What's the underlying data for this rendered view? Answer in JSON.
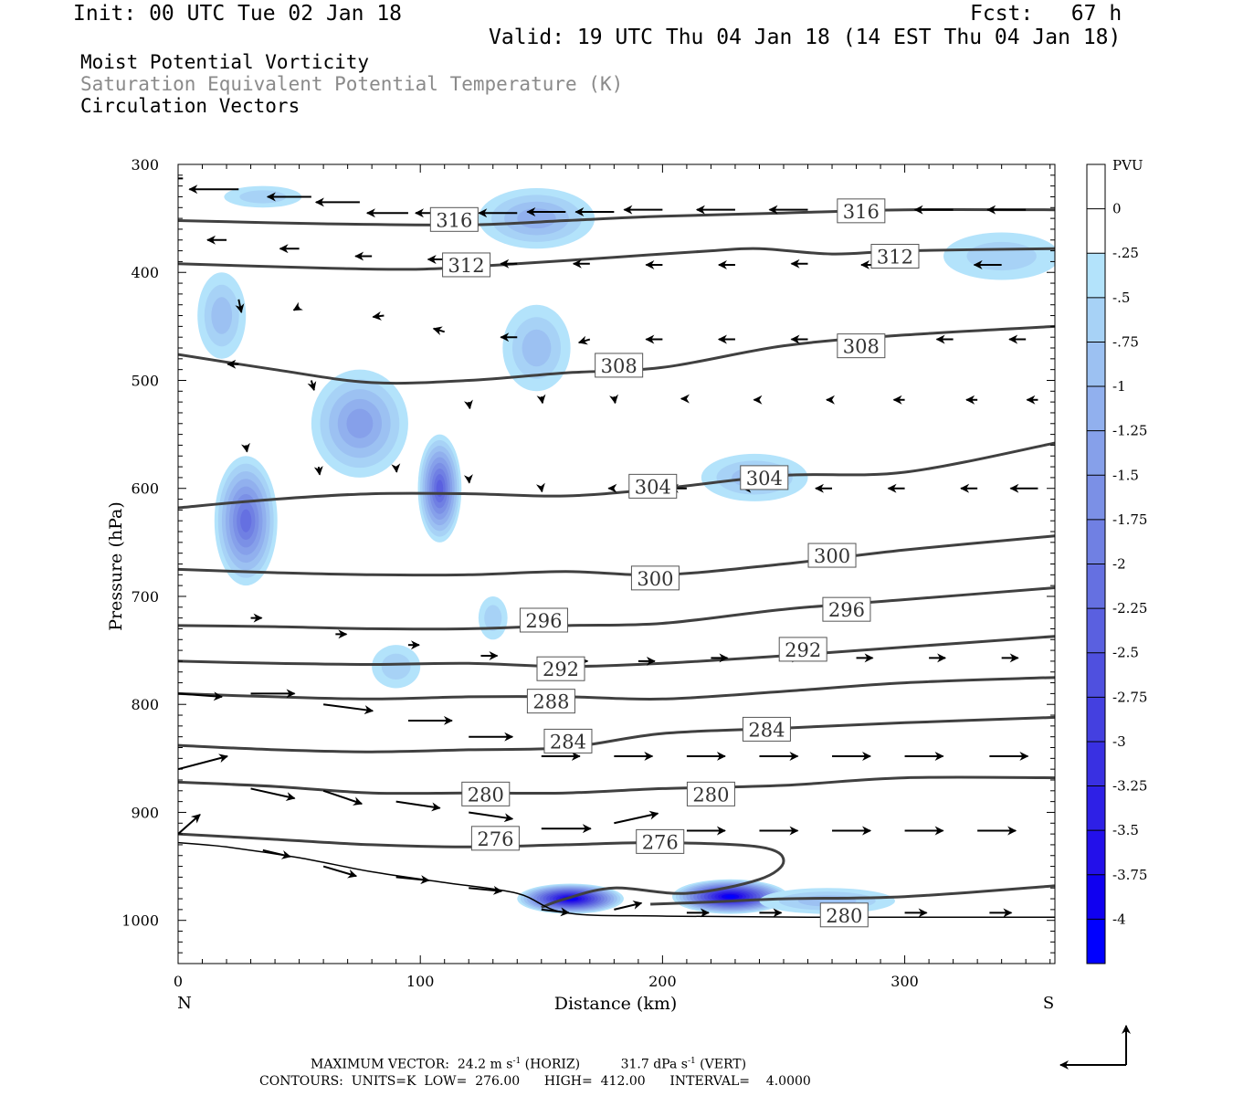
{
  "header": {
    "init": "Init: 00 UTC Tue 02 Jan 18",
    "fcst": "Fcst:   67 h",
    "valid": "Valid: 19 UTC Thu 04 Jan 18 (14 EST Thu 04 Jan 18)",
    "line1": "Moist Potential Vorticity",
    "line2": "Saturation Equivalent Potential Temperature (K)",
    "line3": "Circulation Vectors"
  },
  "footer": {
    "max_label": "MAXIMUM VECTOR:",
    "horiz_value": "24.2 m s",
    "horiz_exp": "-1",
    "horiz_tag": " (HORIZ)",
    "vert_value": "31.7 dPa s",
    "vert_exp": "-1",
    "vert_tag": " (VERT)",
    "contours": "CONTOURS:  UNITS=K  LOW=  276.00      HIGH=  412.00      INTERVAL=    4.0000"
  },
  "colors": {
    "contour": "#404040",
    "terrain": "#000000",
    "mpv_ramp": [
      "#b3e3fb",
      "#a7d2f6",
      "#9cc1f2",
      "#91b0ee",
      "#86a0ea",
      "#7b90e6",
      "#7080e3",
      "#6570e1",
      "#5a60e0",
      "#4f50df",
      "#4440e0",
      "#3930e2",
      "#2e20e6",
      "#2310ea",
      "#1000f0",
      "#0000ff"
    ]
  },
  "chart_data": {
    "type": "cross-section",
    "xlabel": "Distance (km)",
    "ylabel": "Pressure (hPa)",
    "xlim": [
      0,
      362
    ],
    "ylim": [
      1040,
      300
    ],
    "x_ticks": [
      "0",
      "100",
      "200",
      "300"
    ],
    "y_ticks": [
      "300",
      "400",
      "500",
      "600",
      "700",
      "800",
      "900",
      "1000"
    ],
    "x_end_labels": {
      "left": "N",
      "right": "S"
    },
    "colorbar": {
      "title": "PVU",
      "labels": [
        "0",
        "-.25",
        "-.5",
        "-.75",
        "-1",
        "-1.25",
        "-1.5",
        "-1.75",
        "-2",
        "-2.25",
        "-2.5",
        "-2.75",
        "-3",
        "-3.25",
        "-3.5",
        "-3.75",
        "-4"
      ]
    },
    "contours": [
      {
        "value": 316,
        "points": [
          [
            0,
            352
          ],
          [
            60,
            355
          ],
          [
            120,
            356
          ],
          [
            160,
            352
          ],
          [
            200,
            348
          ],
          [
            250,
            345
          ],
          [
            300,
            342
          ],
          [
            362,
            342
          ]
        ],
        "labels": [
          [
            114,
            351
          ],
          [
            282,
            343
          ]
        ]
      },
      {
        "value": 312,
        "points": [
          [
            0,
            392
          ],
          [
            60,
            396
          ],
          [
            100,
            397
          ],
          [
            140,
            392
          ],
          [
            180,
            386
          ],
          [
            220,
            380
          ],
          [
            240,
            378
          ],
          [
            270,
            383
          ],
          [
            300,
            380
          ],
          [
            362,
            378
          ]
        ],
        "labels": [
          [
            119,
            393
          ],
          [
            296,
            385
          ]
        ]
      },
      {
        "value": 308,
        "points": [
          [
            0,
            476
          ],
          [
            40,
            490
          ],
          [
            80,
            502
          ],
          [
            120,
            500
          ],
          [
            160,
            493
          ],
          [
            200,
            488
          ],
          [
            250,
            468
          ],
          [
            300,
            458
          ],
          [
            362,
            450
          ]
        ],
        "labels": [
          [
            182,
            486
          ],
          [
            282,
            468
          ]
        ]
      },
      {
        "value": 304,
        "points": [
          [
            0,
            618
          ],
          [
            40,
            610
          ],
          [
            80,
            605
          ],
          [
            120,
            605
          ],
          [
            160,
            607
          ],
          [
            200,
            600
          ],
          [
            250,
            588
          ],
          [
            300,
            585
          ],
          [
            362,
            558
          ]
        ],
        "labels": [
          [
            196,
            598
          ],
          [
            242,
            590
          ]
        ]
      },
      {
        "value": 300,
        "points": [
          [
            0,
            675
          ],
          [
            40,
            678
          ],
          [
            80,
            680
          ],
          [
            120,
            680
          ],
          [
            160,
            677
          ],
          [
            200,
            680
          ],
          [
            250,
            670
          ],
          [
            300,
            657
          ],
          [
            362,
            644
          ]
        ],
        "labels": [
          [
            197,
            683
          ],
          [
            270,
            662
          ]
        ]
      },
      {
        "value": 296,
        "points": [
          [
            0,
            727
          ],
          [
            40,
            728
          ],
          [
            80,
            730
          ],
          [
            120,
            730
          ],
          [
            160,
            727
          ],
          [
            200,
            725
          ],
          [
            250,
            712
          ],
          [
            300,
            703
          ],
          [
            362,
            692
          ]
        ],
        "labels": [
          [
            151,
            722
          ],
          [
            276,
            712
          ]
        ]
      },
      {
        "value": 292,
        "points": [
          [
            0,
            760
          ],
          [
            40,
            762
          ],
          [
            80,
            763
          ],
          [
            120,
            762
          ],
          [
            160,
            765
          ],
          [
            200,
            762
          ],
          [
            250,
            755
          ],
          [
            300,
            747
          ],
          [
            362,
            737
          ]
        ],
        "labels": [
          [
            158,
            767
          ],
          [
            258,
            749
          ]
        ]
      },
      {
        "value": 288,
        "points": [
          [
            0,
            790
          ],
          [
            40,
            793
          ],
          [
            80,
            795
          ],
          [
            120,
            793
          ],
          [
            160,
            793
          ],
          [
            200,
            795
          ],
          [
            250,
            788
          ],
          [
            300,
            780
          ],
          [
            362,
            775
          ]
        ],
        "labels": [
          [
            154,
            797
          ]
        ]
      },
      {
        "value": 284,
        "points": [
          [
            0,
            838
          ],
          [
            40,
            842
          ],
          [
            80,
            844
          ],
          [
            120,
            842
          ],
          [
            160,
            840
          ],
          [
            200,
            827
          ],
          [
            250,
            822
          ],
          [
            300,
            817
          ],
          [
            362,
            812
          ]
        ],
        "labels": [
          [
            161,
            834
          ],
          [
            243,
            823
          ]
        ]
      },
      {
        "value": 280,
        "points": [
          [
            0,
            872
          ],
          [
            40,
            876
          ],
          [
            80,
            882
          ],
          [
            120,
            882
          ],
          [
            160,
            882
          ],
          [
            200,
            878
          ],
          [
            250,
            875
          ],
          [
            300,
            868
          ],
          [
            362,
            868
          ]
        ],
        "labels": [
          [
            127,
            883
          ],
          [
            220,
            883
          ]
        ]
      },
      {
        "value": 276,
        "points": [
          [
            0,
            920
          ],
          [
            40,
            925
          ],
          [
            80,
            930
          ],
          [
            120,
            932
          ],
          [
            160,
            930
          ],
          [
            200,
            928
          ],
          [
            240,
            932
          ],
          [
            250,
            945
          ],
          [
            240,
            962
          ],
          [
            210,
            975
          ],
          [
            180,
            970
          ],
          [
            160,
            980
          ],
          [
            150,
            988
          ]
        ],
        "labels": [
          [
            131,
            924
          ],
          [
            199,
            927
          ]
        ]
      },
      {
        "value": 280,
        "points": [
          [
            195,
            985
          ],
          [
            220,
            983
          ],
          [
            250,
            980
          ],
          [
            300,
            978
          ],
          [
            362,
            968
          ]
        ],
        "labels": [
          [
            275,
            995
          ]
        ]
      }
    ],
    "terrain": [
      [
        0,
        928
      ],
      [
        20,
        932
      ],
      [
        50,
        942
      ],
      [
        80,
        955
      ],
      [
        110,
        965
      ],
      [
        140,
        975
      ],
      [
        160,
        993
      ],
      [
        200,
        996
      ],
      [
        260,
        997
      ],
      [
        362,
        997
      ]
    ],
    "mpv_blobs": [
      {
        "x": 28,
        "p": 630,
        "rx": 13,
        "ry": 60,
        "min": -2.0
      },
      {
        "x": 18,
        "p": 440,
        "rx": 10,
        "ry": 40,
        "min": -0.75
      },
      {
        "x": 75,
        "p": 540,
        "rx": 20,
        "ry": 50,
        "min": -1.25
      },
      {
        "x": 108,
        "p": 600,
        "rx": 9,
        "ry": 50,
        "min": -2.25
      },
      {
        "x": 148,
        "p": 470,
        "rx": 14,
        "ry": 40,
        "min": -0.75
      },
      {
        "x": 148,
        "p": 350,
        "rx": 24,
        "ry": 28,
        "min": -1.0
      },
      {
        "x": 35,
        "p": 330,
        "rx": 16,
        "ry": 10,
        "min": -0.5
      },
      {
        "x": 238,
        "p": 590,
        "rx": 22,
        "ry": 22,
        "min": -0.75
      },
      {
        "x": 340,
        "p": 385,
        "rx": 24,
        "ry": 22,
        "min": -0.5
      },
      {
        "x": 162,
        "p": 980,
        "rx": 22,
        "ry": 14,
        "min": -4.0
      },
      {
        "x": 228,
        "p": 978,
        "rx": 24,
        "ry": 16,
        "min": -4.0
      },
      {
        "x": 268,
        "p": 982,
        "rx": 28,
        "ry": 12,
        "min": -0.75
      },
      {
        "x": 90,
        "p": 765,
        "rx": 10,
        "ry": 20,
        "min": -0.5
      },
      {
        "x": 130,
        "p": 720,
        "rx": 6,
        "ry": 20,
        "min": -0.5
      }
    ],
    "vectors": [
      [
        2,
        313,
        -0.9,
        0
      ],
      [
        25,
        323,
        -0.9,
        0
      ],
      [
        55,
        330,
        -0.8,
        0
      ],
      [
        75,
        335,
        -0.8,
        0
      ],
      [
        95,
        345,
        -0.75,
        0
      ],
      [
        115,
        345,
        -0.75,
        0
      ],
      [
        140,
        345,
        -0.7,
        0
      ],
      [
        160,
        344,
        -0.7,
        0
      ],
      [
        180,
        344,
        -0.7,
        0
      ],
      [
        200,
        342,
        -0.7,
        0
      ],
      [
        230,
        342,
        -0.7,
        0
      ],
      [
        260,
        342,
        -0.7,
        0
      ],
      [
        290,
        342,
        -0.7,
        0
      ],
      [
        320,
        342,
        -0.7,
        0
      ],
      [
        350,
        342,
        -0.7,
        0
      ],
      [
        20,
        370,
        -0.35,
        0
      ],
      [
        50,
        378,
        -0.35,
        0
      ],
      [
        80,
        385,
        -0.3,
        0
      ],
      [
        110,
        388,
        -0.3,
        0
      ],
      [
        140,
        392,
        -0.3,
        0
      ],
      [
        170,
        392,
        -0.3,
        0
      ],
      [
        200,
        393,
        -0.3,
        0
      ],
      [
        230,
        393,
        -0.3,
        0
      ],
      [
        260,
        392,
        -0.3,
        0
      ],
      [
        290,
        393,
        -0.35,
        0
      ],
      [
        340,
        393,
        -0.5,
        0
      ],
      [
        25,
        425,
        0.05,
        20
      ],
      [
        50,
        432,
        -0.1,
        5
      ],
      [
        85,
        440,
        -0.2,
        2
      ],
      [
        110,
        455,
        -0.2,
        -5
      ],
      [
        140,
        460,
        -0.3,
        0
      ],
      [
        170,
        462,
        -0.2,
        5
      ],
      [
        200,
        462,
        -0.3,
        0
      ],
      [
        230,
        462,
        -0.3,
        0
      ],
      [
        260,
        462,
        -0.3,
        0
      ],
      [
        290,
        462,
        -0.3,
        0
      ],
      [
        320,
        462,
        -0.3,
        0
      ],
      [
        350,
        462,
        -0.3,
        0
      ],
      [
        25,
        485,
        -0.2,
        0
      ],
      [
        55,
        500,
        0.05,
        15
      ],
      [
        120,
        520,
        0.02,
        10
      ],
      [
        150,
        515,
        0.02,
        10
      ],
      [
        180,
        515,
        0.02,
        10
      ],
      [
        210,
        517,
        -0.1,
        0
      ],
      [
        240,
        518,
        -0.1,
        0
      ],
      [
        270,
        518,
        -0.1,
        0
      ],
      [
        300,
        518,
        -0.2,
        0
      ],
      [
        330,
        518,
        -0.2,
        0
      ],
      [
        355,
        518,
        -0.2,
        0
      ],
      [
        28,
        560,
        0.02,
        10
      ],
      [
        58,
        580,
        0.02,
        12
      ],
      [
        90,
        580,
        0.01,
        8
      ],
      [
        120,
        590,
        0.01,
        8
      ],
      [
        150,
        600,
        0.01,
        5
      ],
      [
        180,
        600,
        -0.1,
        0
      ],
      [
        210,
        600,
        -0.3,
        0
      ],
      [
        240,
        600,
        -0.3,
        0
      ],
      [
        270,
        600,
        -0.3,
        0
      ],
      [
        300,
        600,
        -0.3,
        0
      ],
      [
        330,
        600,
        -0.3,
        0
      ],
      [
        355,
        600,
        -0.5,
        0
      ],
      [
        30,
        720,
        0.2,
        0
      ],
      [
        65,
        735,
        0.2,
        0
      ],
      [
        95,
        745,
        0.2,
        0
      ],
      [
        125,
        755,
        0.3,
        0
      ],
      [
        160,
        760,
        0.4,
        0
      ],
      [
        190,
        760,
        0.3,
        0
      ],
      [
        220,
        757,
        0.3,
        0
      ],
      [
        250,
        757,
        0.3,
        0
      ],
      [
        280,
        757,
        0.3,
        0
      ],
      [
        310,
        757,
        0.3,
        0
      ],
      [
        340,
        757,
        0.3,
        0
      ],
      [
        0,
        790,
        0.8,
        5
      ],
      [
        30,
        790,
        0.8,
        0
      ],
      [
        60,
        800,
        0.9,
        10
      ],
      [
        95,
        815,
        0.8,
        0
      ],
      [
        120,
        830,
        0.8,
        0
      ],
      [
        150,
        848,
        0.7,
        0
      ],
      [
        180,
        848,
        0.7,
        0
      ],
      [
        210,
        848,
        0.7,
        0
      ],
      [
        240,
        848,
        0.7,
        0
      ],
      [
        270,
        848,
        0.7,
        0
      ],
      [
        300,
        848,
        0.7,
        0
      ],
      [
        335,
        848,
        0.7,
        0
      ],
      [
        0,
        860,
        0.9,
        -20
      ],
      [
        30,
        878,
        0.8,
        15
      ],
      [
        60,
        880,
        0.7,
        20
      ],
      [
        90,
        890,
        0.8,
        10
      ],
      [
        120,
        900,
        0.8,
        10
      ],
      [
        150,
        915,
        0.9,
        0
      ],
      [
        180,
        910,
        0.8,
        -15
      ],
      [
        210,
        917,
        0.7,
        0
      ],
      [
        240,
        917,
        0.7,
        0
      ],
      [
        270,
        917,
        0.7,
        0
      ],
      [
        300,
        917,
        0.7,
        0
      ],
      [
        330,
        917,
        0.7,
        0
      ],
      [
        0,
        920,
        0.4,
        -30
      ],
      [
        35,
        935,
        0.5,
        10
      ],
      [
        60,
        950,
        0.6,
        15
      ],
      [
        90,
        960,
        0.6,
        5
      ],
      [
        120,
        970,
        0.6,
        5
      ],
      [
        150,
        990,
        0.5,
        5
      ],
      [
        180,
        990,
        0.5,
        -10
      ],
      [
        210,
        993,
        0.4,
        0
      ],
      [
        240,
        993,
        0.4,
        0
      ],
      [
        270,
        993,
        0.4,
        0
      ],
      [
        300,
        993,
        0.4,
        0
      ],
      [
        335,
        993,
        0.4,
        0
      ]
    ]
  }
}
